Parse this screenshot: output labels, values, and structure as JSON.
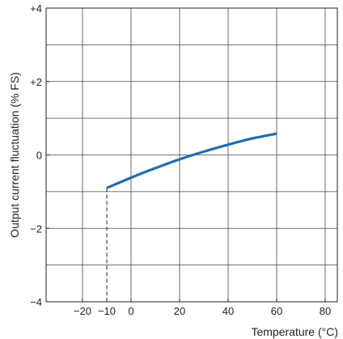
{
  "chart_data": {
    "type": "line",
    "xlabel": "Temperature (°C)",
    "ylabel": "Output current fluctuation (% FS)",
    "xlim": [
      -35,
      85
    ],
    "ylim": [
      -4,
      4
    ],
    "x_ticks": [
      {
        "value": -20,
        "label": "−20"
      },
      {
        "value": -10,
        "label": "−10"
      },
      {
        "value": 0,
        "label": "0"
      },
      {
        "value": 20,
        "label": "20"
      },
      {
        "value": 40,
        "label": "40"
      },
      {
        "value": 60,
        "label": "60"
      },
      {
        "value": 80,
        "label": "80"
      }
    ],
    "y_ticks": [
      {
        "value": 4,
        "label": "+4"
      },
      {
        "value": 2,
        "label": "+2"
      },
      {
        "value": 0,
        "label": "0"
      },
      {
        "value": -2,
        "label": "−2"
      },
      {
        "value": -4,
        "label": "−4"
      }
    ],
    "grid": true,
    "series": [
      {
        "color": "#1f6db5",
        "x": [
          -10,
          0,
          10,
          20,
          30,
          40,
          50,
          60
        ],
        "y": [
          -0.9,
          -0.62,
          -0.36,
          -0.12,
          0.09,
          0.28,
          0.45,
          0.58
        ]
      }
    ],
    "annotations": [
      {
        "type": "dashed-drop-line",
        "x": -10,
        "from_y": -0.9,
        "to_y": -4
      }
    ]
  }
}
